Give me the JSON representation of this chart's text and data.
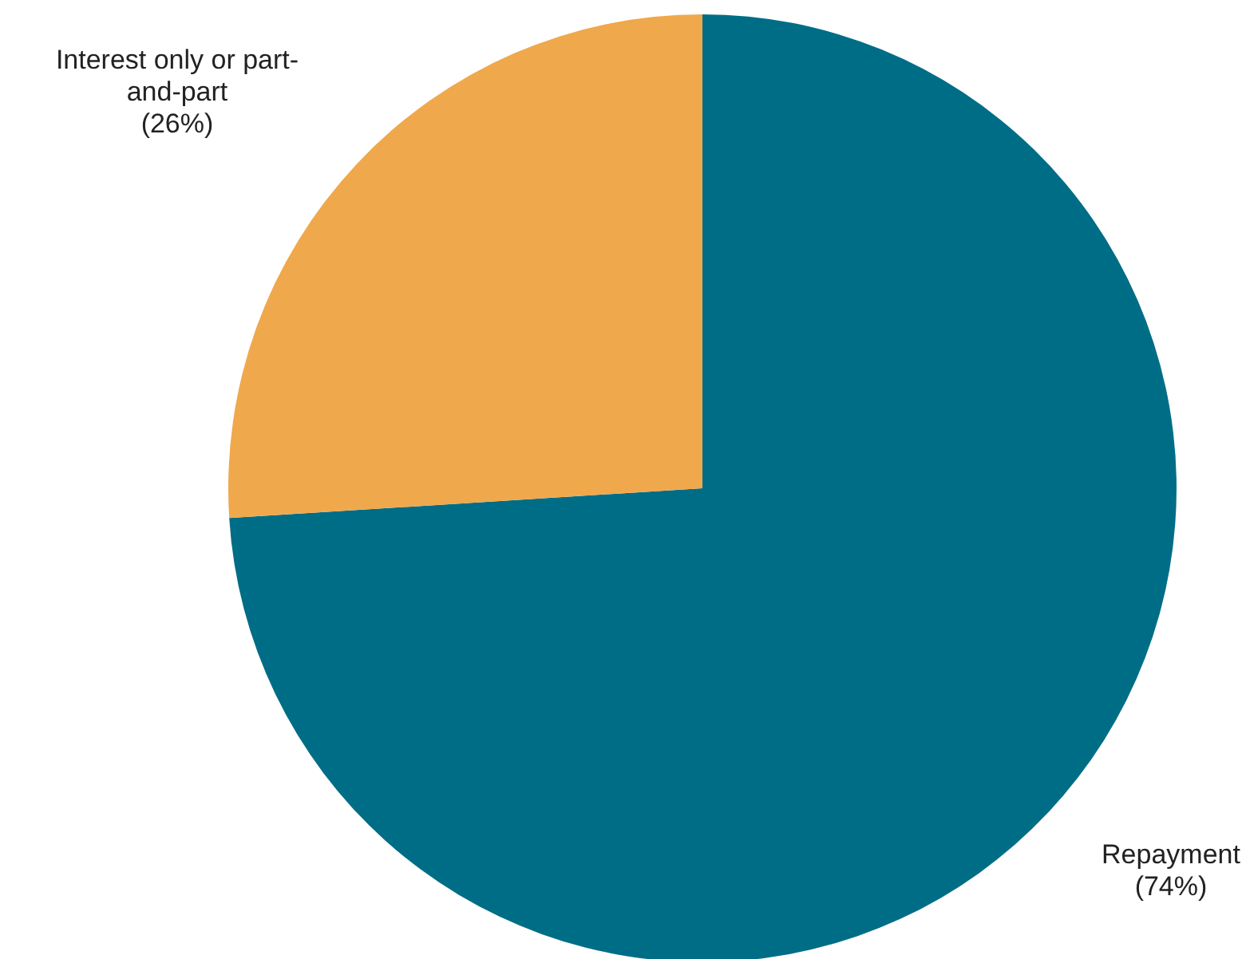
{
  "chart_data": {
    "type": "pie",
    "categories": [
      "Repayment",
      "Interest only or part-and-part"
    ],
    "values": [
      74,
      26
    ],
    "colors": [
      "#006d87",
      "#f0a84c"
    ],
    "value_labels": [
      "(74%)",
      "(26%)"
    ],
    "legend": false
  }
}
